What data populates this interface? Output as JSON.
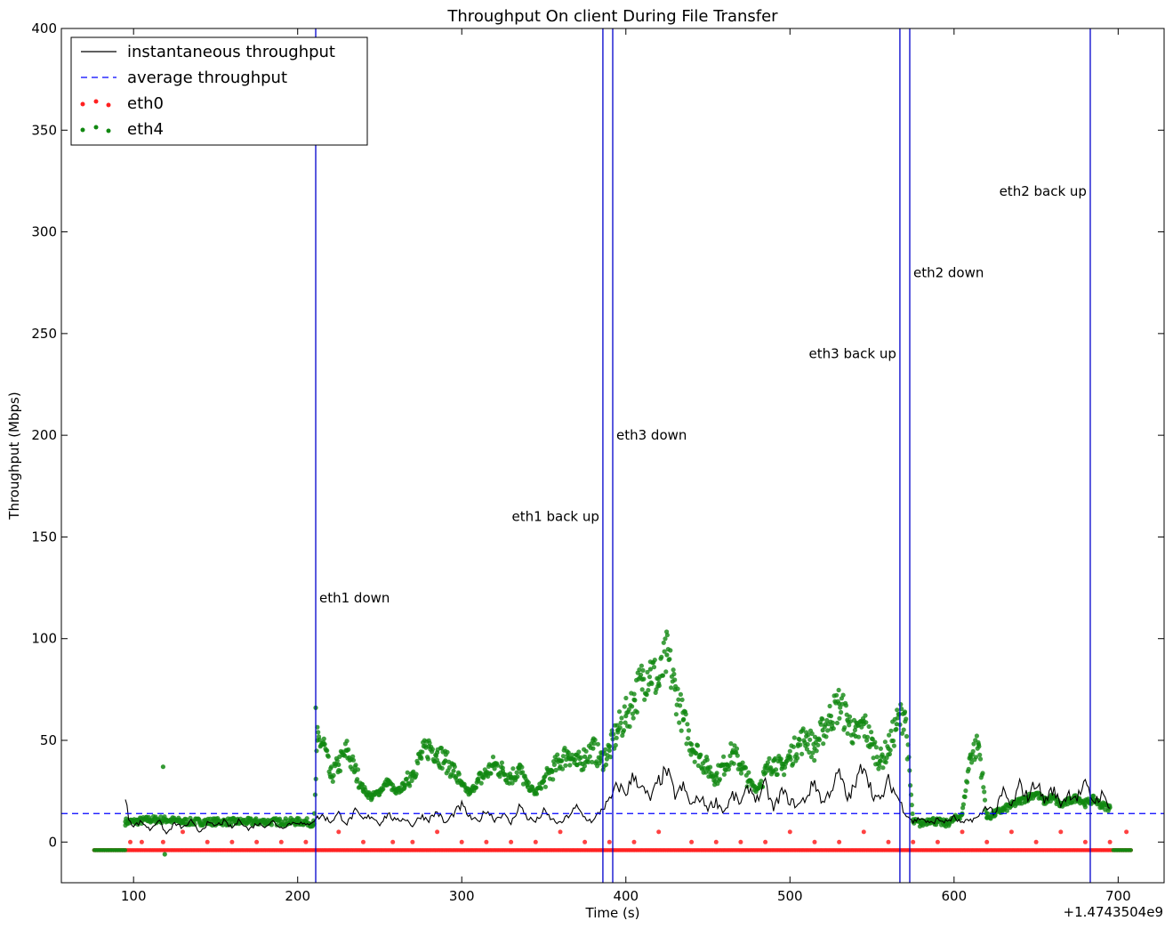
{
  "chart_data": {
    "type": "line",
    "title": "Throughput On client During File Transfer",
    "xlabel": "Time (s)",
    "ylabel": "Throughput (Mbps)",
    "x_offset_label": "+1.4743504e9",
    "xlim": [
      56,
      728
    ],
    "ylim": [
      -20,
      400
    ],
    "xticks": [
      100,
      200,
      300,
      400,
      500,
      600,
      700
    ],
    "yticks": [
      0,
      50,
      100,
      150,
      200,
      250,
      300,
      350,
      400
    ],
    "grid": false,
    "legend_position": "top-left",
    "legend": [
      {
        "label": "instantaneous throughput",
        "style": "solid-line",
        "color": "#000000"
      },
      {
        "label": "average throughput",
        "style": "dashed-line",
        "color": "#0000ff"
      },
      {
        "label": "eth0",
        "style": "dots",
        "color": "#ff2020"
      },
      {
        "label": "eth4",
        "style": "dots",
        "color": "#118811"
      }
    ],
    "average_throughput": 14,
    "events": [
      {
        "x": 211,
        "label": "eth1 down",
        "label_y": 120,
        "label_side": "right"
      },
      {
        "x": 386,
        "label": "eth1 back up",
        "label_y": 160,
        "label_side": "left"
      },
      {
        "x": 392,
        "label": "eth3 down",
        "label_y": 200,
        "label_side": "right"
      },
      {
        "x": 567,
        "label": "eth3 back up",
        "label_y": 240,
        "label_side": "left"
      },
      {
        "x": 573,
        "label": "eth2 down",
        "label_y": 280,
        "label_side": "right"
      },
      {
        "x": 683,
        "label": "eth2 back up",
        "label_y": 320,
        "label_side": "left"
      }
    ],
    "series": [
      {
        "name": "instantaneous throughput",
        "kind": "line",
        "color": "#000000",
        "x": [
          95,
          97,
          100,
          105,
          110,
          115,
          120,
          125,
          130,
          135,
          140,
          145,
          150,
          155,
          160,
          165,
          170,
          175,
          180,
          185,
          190,
          195,
          200,
          205,
          210,
          215,
          220,
          225,
          230,
          235,
          240,
          245,
          250,
          255,
          260,
          265,
          270,
          275,
          280,
          285,
          290,
          295,
          300,
          305,
          310,
          315,
          320,
          325,
          330,
          335,
          340,
          345,
          350,
          355,
          360,
          365,
          370,
          375,
          380,
          385,
          390,
          395,
          400,
          405,
          410,
          415,
          420,
          425,
          430,
          435,
          440,
          445,
          450,
          455,
          460,
          465,
          470,
          475,
          480,
          485,
          490,
          495,
          500,
          505,
          510,
          515,
          520,
          525,
          530,
          535,
          540,
          545,
          550,
          555,
          560,
          565,
          570,
          575,
          580,
          585,
          590,
          595,
          600,
          605,
          610,
          615,
          620,
          625,
          630,
          635,
          640,
          645,
          650,
          655,
          660,
          665,
          670,
          675,
          680,
          685,
          690,
          695
        ],
        "y": [
          21,
          12,
          8,
          10,
          6,
          11,
          4,
          9,
          7,
          10,
          5,
          9,
          8,
          10,
          7,
          11,
          6,
          9,
          8,
          10,
          7,
          9,
          10,
          8,
          11,
          13,
          10,
          14,
          9,
          15,
          11,
          13,
          9,
          14,
          10,
          12,
          8,
          13,
          11,
          15,
          9,
          14,
          18,
          12,
          10,
          16,
          11,
          14,
          9,
          18,
          12,
          10,
          15,
          11,
          9,
          13,
          17,
          12,
          10,
          16,
          20,
          28,
          24,
          33,
          26,
          21,
          30,
          35,
          23,
          27,
          18,
          22,
          17,
          20,
          15,
          23,
          19,
          27,
          21,
          28,
          16,
          25,
          20,
          18,
          22,
          30,
          19,
          26,
          34,
          21,
          28,
          40,
          24,
          20,
          30,
          23,
          15,
          10,
          12,
          9,
          11,
          10,
          12,
          9,
          11,
          12,
          18,
          14,
          25,
          17,
          28,
          22,
          30,
          20,
          26,
          19,
          24,
          22,
          28,
          20,
          23,
          18
        ]
      },
      {
        "name": "eth4",
        "kind": "scatter",
        "color": "#118811",
        "x": [
          95,
          100,
          110,
          120,
          130,
          140,
          150,
          160,
          170,
          180,
          190,
          200,
          205,
          210,
          212,
          216,
          220,
          225,
          230,
          235,
          240,
          245,
          250,
          255,
          260,
          265,
          270,
          275,
          280,
          285,
          290,
          295,
          300,
          305,
          310,
          315,
          320,
          325,
          330,
          335,
          340,
          345,
          350,
          355,
          360,
          365,
          370,
          375,
          380,
          385,
          390,
          395,
          400,
          405,
          410,
          415,
          420,
          425,
          430,
          435,
          440,
          445,
          450,
          455,
          460,
          465,
          470,
          475,
          480,
          485,
          490,
          495,
          500,
          505,
          510,
          515,
          520,
          525,
          530,
          535,
          540,
          545,
          550,
          555,
          560,
          565,
          570,
          575,
          580,
          585,
          590,
          595,
          600,
          605,
          610,
          615,
          620,
          625,
          630,
          635,
          640,
          645,
          650,
          655,
          660,
          665,
          670,
          675,
          680,
          685,
          690,
          695
        ],
        "y": [
          10,
          10,
          11,
          11,
          10,
          10,
          10,
          10,
          10,
          10,
          10,
          10,
          10,
          9,
          50,
          48,
          32,
          38,
          45,
          35,
          26,
          22,
          25,
          30,
          24,
          28,
          34,
          42,
          47,
          44,
          40,
          35,
          28,
          24,
          30,
          34,
          38,
          35,
          32,
          36,
          28,
          24,
          30,
          35,
          40,
          44,
          38,
          42,
          46,
          40,
          45,
          55,
          62,
          70,
          80,
          85,
          78,
          92,
          75,
          60,
          48,
          42,
          36,
          32,
          38,
          44,
          38,
          30,
          26,
          34,
          40,
          36,
          42,
          48,
          52,
          46,
          55,
          62,
          68,
          60,
          52,
          58,
          48,
          40,
          46,
          58,
          64,
          10,
          9,
          11,
          10,
          9,
          11,
          14,
          43,
          48,
          12,
          14,
          16,
          18,
          20,
          22,
          24,
          20,
          22,
          18,
          20,
          22,
          19,
          21,
          18,
          17
        ]
      },
      {
        "name": "eth0",
        "kind": "scatter",
        "color": "#ff2020",
        "baseline": -4,
        "baseline_x": [
          76,
          708
        ],
        "x": [
          98,
          105,
          118,
          130,
          145,
          160,
          175,
          190,
          205,
          225,
          240,
          258,
          270,
          285,
          300,
          315,
          330,
          345,
          360,
          375,
          390,
          405,
          420,
          440,
          455,
          470,
          485,
          500,
          515,
          530,
          545,
          560,
          575,
          590,
          605,
          620,
          635,
          650,
          665,
          680,
          695,
          705
        ],
        "y": [
          0,
          0,
          0,
          5,
          0,
          0,
          0,
          0,
          0,
          5,
          0,
          0,
          0,
          5,
          0,
          0,
          0,
          0,
          5,
          0,
          0,
          0,
          5,
          0,
          0,
          0,
          0,
          5,
          0,
          0,
          5,
          0,
          0,
          0,
          5,
          0,
          5,
          0,
          5,
          0,
          0,
          5
        ]
      }
    ]
  }
}
